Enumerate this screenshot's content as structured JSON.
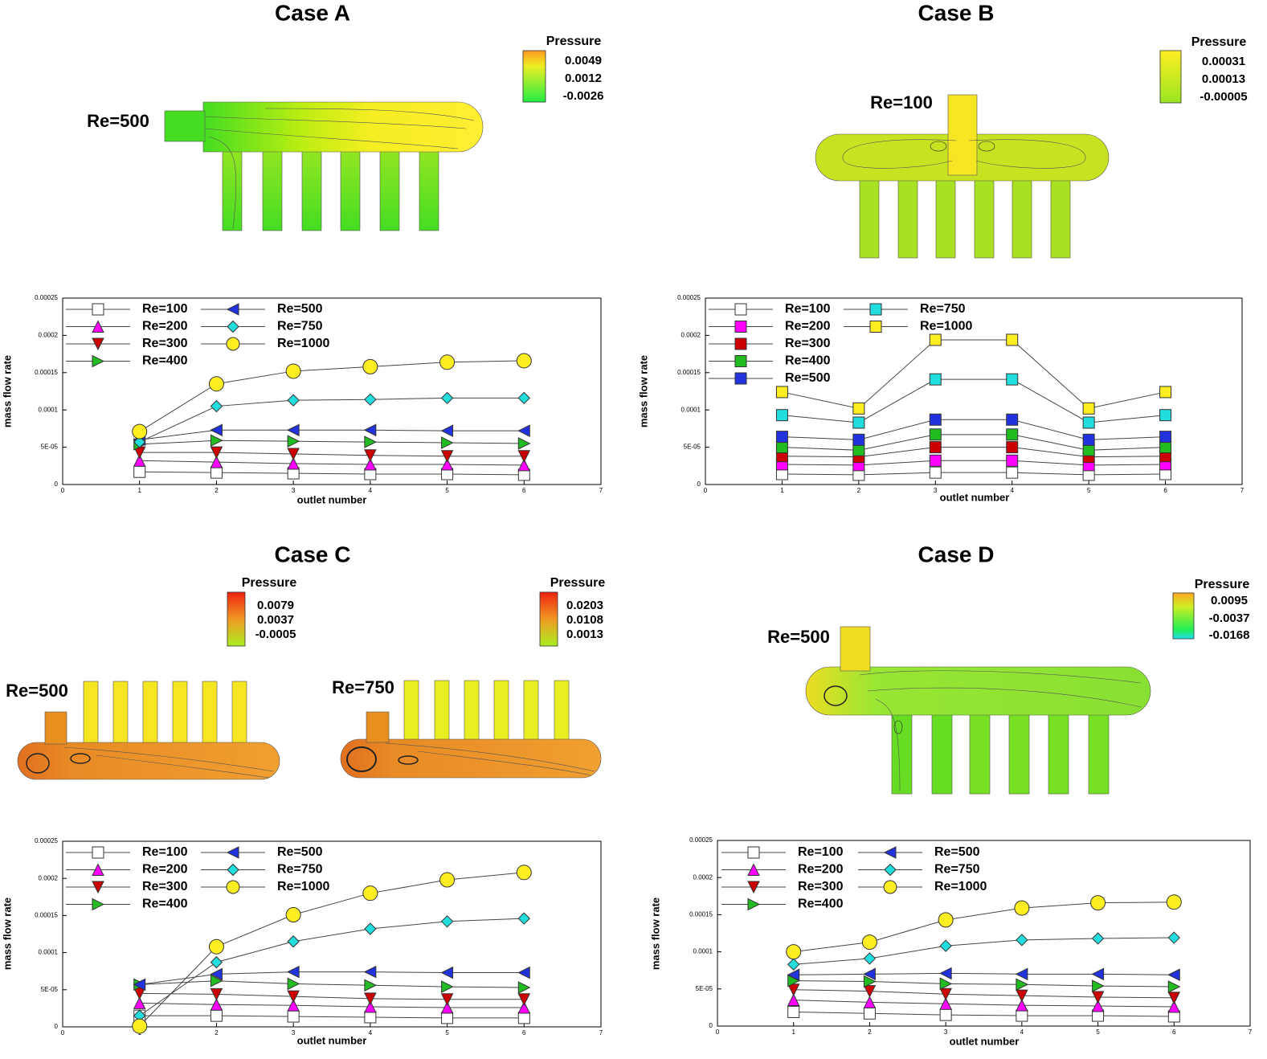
{
  "panels": [
    {
      "title": "Case A",
      "re_labels": [
        "Re=500"
      ],
      "pressure_legends": [
        {
          "title": "Pressure",
          "labels": [
            "0.0049",
            "0.0012",
            "-0.0026"
          ]
        }
      ]
    },
    {
      "title": "Case B",
      "re_labels": [
        "Re=100"
      ],
      "pressure_legends": [
        {
          "title": "Pressure",
          "labels": [
            "0.00031",
            "0.00013",
            "-0.00005"
          ]
        }
      ]
    },
    {
      "title": "Case C",
      "re_labels": [
        "Re=500",
        "Re=750"
      ],
      "pressure_legends": [
        {
          "title": "Pressure",
          "labels": [
            "0.0079",
            "0.0037",
            "-0.0005"
          ]
        },
        {
          "title": "Pressure",
          "labels": [
            "0.0203",
            "0.0108",
            "0.0013"
          ]
        }
      ]
    },
    {
      "title": "Case D",
      "re_labels": [
        "Re=500"
      ],
      "pressure_legends": [
        {
          "title": "Pressure",
          "labels": [
            "0.0095",
            "-0.0037",
            "-0.0168"
          ]
        }
      ]
    }
  ],
  "chart_data": [
    {
      "type": "line",
      "x_label": "outlet number",
      "y_label": "mass flow rate",
      "x": [
        1,
        2,
        3,
        4,
        5,
        6
      ],
      "xlim": [
        0,
        7
      ],
      "xticks": [
        0,
        1,
        2,
        3,
        4,
        5,
        6,
        7
      ],
      "ylim": [
        0,
        0.00025
      ],
      "yticks": [
        0,
        {
          "value": 5e-05,
          "label": "5E-05"
        },
        0.0001,
        0.00015,
        0.0002,
        0.00025
      ],
      "series": [
        {
          "name": "Re=100",
          "color": "#ffffff",
          "marker": "square",
          "values": [
            1.7e-05,
            1.6e-05,
            1.5e-05,
            1.4e-05,
            1.4e-05,
            1.3e-05
          ]
        },
        {
          "name": "Re=200",
          "color": "#ff00ff",
          "marker": "triangle-up",
          "values": [
            3.2e-05,
            3e-05,
            2.8e-05,
            2.7e-05,
            2.7e-05,
            2.6e-05
          ]
        },
        {
          "name": "Re=300",
          "color": "#cc0000",
          "marker": "triangle-down",
          "values": [
            4.3e-05,
            4.3e-05,
            4.1e-05,
            3.9e-05,
            3.8e-05,
            3.8e-05
          ]
        },
        {
          "name": "Re=400",
          "color": "#22bb22",
          "marker": "triangle-right",
          "values": [
            5.4e-05,
            5.9e-05,
            5.8e-05,
            5.7e-05,
            5.6e-05,
            5.5e-05
          ]
        },
        {
          "name": "Re=500",
          "color": "#2233dd",
          "marker": "triangle-left",
          "values": [
            6e-05,
            7.3e-05,
            7.3e-05,
            7.3e-05,
            7.2e-05,
            7.2e-05
          ]
        },
        {
          "name": "Re=750",
          "color": "#22dddd",
          "marker": "diamond",
          "values": [
            5.7e-05,
            0.000105,
            0.000113,
            0.000114,
            0.000116,
            0.000116
          ]
        },
        {
          "name": "Re=1000",
          "color": "#ffee22",
          "marker": "circle",
          "values": [
            7.1e-05,
            0.000135,
            0.000152,
            0.000158,
            0.000164,
            0.000166
          ]
        }
      ]
    },
    {
      "type": "line",
      "x_label": "outlet number",
      "y_label": "mass flow rate",
      "x": [
        1,
        2,
        3,
        4,
        5,
        6
      ],
      "xlim": [
        0,
        7
      ],
      "xticks": [
        0,
        1,
        2,
        3,
        4,
        5,
        6,
        7
      ],
      "ylim": [
        0,
        0.00025
      ],
      "yticks": [
        0,
        {
          "value": 5e-05,
          "label": "5E-05"
        },
        0.0001,
        0.00015,
        0.0002,
        0.00025
      ],
      "series": [
        {
          "name": "Re=100",
          "color": "#ffffff",
          "marker": "square",
          "values": [
            1.4e-05,
            1.3e-05,
            1.6e-05,
            1.6e-05,
            1.3e-05,
            1.4e-05
          ]
        },
        {
          "name": "Re=200",
          "color": "#ff00ff",
          "marker": "square",
          "values": [
            2.7e-05,
            2.6e-05,
            3.2e-05,
            3.2e-05,
            2.6e-05,
            2.7e-05
          ]
        },
        {
          "name": "Re=300",
          "color": "#cc0000",
          "marker": "square",
          "values": [
            3.8e-05,
            3.7e-05,
            5e-05,
            5e-05,
            3.7e-05,
            3.8e-05
          ]
        },
        {
          "name": "Re=400",
          "color": "#22bb22",
          "marker": "square",
          "values": [
            5e-05,
            4.6e-05,
            6.7e-05,
            6.7e-05,
            4.6e-05,
            5e-05
          ]
        },
        {
          "name": "Re=500",
          "color": "#2233dd",
          "marker": "square",
          "values": [
            6.4e-05,
            6e-05,
            8.7e-05,
            8.7e-05,
            6e-05,
            6.4e-05
          ]
        },
        {
          "name": "Re=750",
          "color": "#22dddd",
          "marker": "square",
          "values": [
            9.3e-05,
            8.3e-05,
            0.000141,
            0.000141,
            8.3e-05,
            9.3e-05
          ]
        },
        {
          "name": "Re=1000",
          "color": "#ffee22",
          "marker": "square",
          "values": [
            0.000124,
            0.000102,
            0.000194,
            0.000194,
            0.000102,
            0.000124
          ]
        }
      ]
    },
    {
      "type": "line",
      "x_label": "outlet number",
      "y_label": "mass flow rate",
      "x": [
        1,
        2,
        3,
        4,
        5,
        6
      ],
      "xlim": [
        0,
        7
      ],
      "xticks": [
        0,
        1,
        2,
        3,
        4,
        5,
        6,
        7
      ],
      "ylim": [
        0,
        0.00025
      ],
      "yticks": [
        0,
        {
          "value": 5e-05,
          "label": "5E-05"
        },
        0.0001,
        0.00015,
        0.0002,
        0.00025
      ],
      "series": [
        {
          "name": "Re=100",
          "color": "#ffffff",
          "marker": "square",
          "values": [
            1.5e-05,
            1.5e-05,
            1.4e-05,
            1.3e-05,
            1.2e-05,
            1.2e-05
          ]
        },
        {
          "name": "Re=200",
          "color": "#ff00ff",
          "marker": "triangle-up",
          "values": [
            3.2e-05,
            3e-05,
            2.9e-05,
            2.7e-05,
            2.6e-05,
            2.6e-05
          ]
        },
        {
          "name": "Re=300",
          "color": "#cc0000",
          "marker": "triangle-down",
          "values": [
            4.5e-05,
            4.4e-05,
            4.1e-05,
            3.8e-05,
            3.7e-05,
            3.7e-05
          ]
        },
        {
          "name": "Re=400",
          "color": "#22bb22",
          "marker": "triangle-right",
          "values": [
            5.7e-05,
            6.2e-05,
            5.8e-05,
            5.6e-05,
            5.4e-05,
            5.3e-05
          ]
        },
        {
          "name": "Re=500",
          "color": "#2233dd",
          "marker": "triangle-left",
          "values": [
            5.7e-05,
            7.1e-05,
            7.4e-05,
            7.4e-05,
            7.3e-05,
            7.3e-05
          ]
        },
        {
          "name": "Re=750",
          "color": "#22dddd",
          "marker": "diamond",
          "values": [
            1.5e-05,
            8.7e-05,
            0.000115,
            0.000132,
            0.000142,
            0.000146
          ]
        },
        {
          "name": "Re=1000",
          "color": "#ffee22",
          "marker": "circle",
          "values": [
            1e-06,
            0.000108,
            0.000151,
            0.00018,
            0.000198,
            0.000208
          ]
        }
      ]
    },
    {
      "type": "line",
      "x_label": "outlet number",
      "y_label": "mass flow rate",
      "x": [
        1,
        2,
        3,
        4,
        5,
        6
      ],
      "xlim": [
        0,
        7
      ],
      "xticks": [
        0,
        1,
        2,
        3,
        4,
        5,
        6,
        7
      ],
      "ylim": [
        0,
        0.00025
      ],
      "yticks": [
        0,
        {
          "value": 5e-05,
          "label": "5E-05"
        },
        0.0001,
        0.00015,
        0.0002,
        0.00025
      ],
      "series": [
        {
          "name": "Re=100",
          "color": "#ffffff",
          "marker": "square",
          "values": [
            1.9e-05,
            1.7e-05,
            1.5e-05,
            1.4e-05,
            1.4e-05,
            1.3e-05
          ]
        },
        {
          "name": "Re=200",
          "color": "#ff00ff",
          "marker": "triangle-up",
          "values": [
            3.5e-05,
            3.2e-05,
            3e-05,
            2.8e-05,
            2.7e-05,
            2.6e-05
          ]
        },
        {
          "name": "Re=300",
          "color": "#cc0000",
          "marker": "triangle-down",
          "values": [
            4.9e-05,
            4.7e-05,
            4.3e-05,
            4.1e-05,
            3.9e-05,
            3.8e-05
          ]
        },
        {
          "name": "Re=400",
          "color": "#22bb22",
          "marker": "triangle-right",
          "values": [
            6.1e-05,
            6e-05,
            5.7e-05,
            5.6e-05,
            5.4e-05,
            5.3e-05
          ]
        },
        {
          "name": "Re=500",
          "color": "#2233dd",
          "marker": "triangle-left",
          "values": [
            6.9e-05,
            7e-05,
            7.1e-05,
            7e-05,
            7e-05,
            6.9e-05
          ]
        },
        {
          "name": "Re=750",
          "color": "#22dddd",
          "marker": "diamond",
          "values": [
            8.3e-05,
            9.1e-05,
            0.000108,
            0.000116,
            0.000118,
            0.000119
          ]
        },
        {
          "name": "Re=1000",
          "color": "#ffee22",
          "marker": "circle",
          "values": [
            0.0001,
            0.000113,
            0.000143,
            0.000159,
            0.000166,
            0.000167
          ]
        }
      ]
    }
  ]
}
